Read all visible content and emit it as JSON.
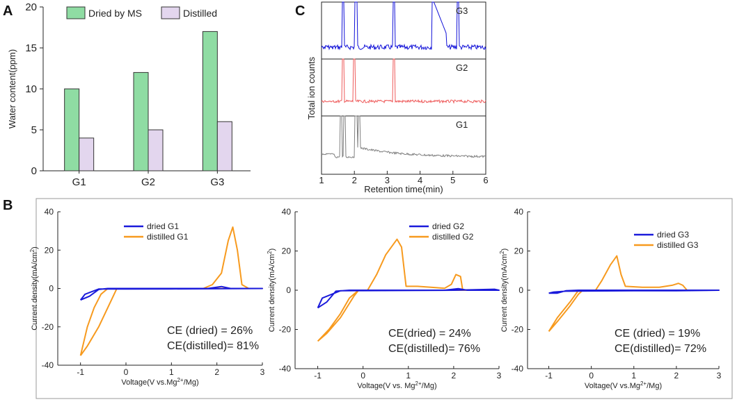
{
  "panel_labels": {
    "a": "A",
    "b": "B",
    "c": "C"
  },
  "colors": {
    "dried": "#1a1adb",
    "distilled": "#f79a1e",
    "bar_dried": "#8fdca3",
    "bar_distilled": "#e3d6ee",
    "g1_trace": "#7f7f7f",
    "g2_trace": "#ee5a5a",
    "g3_trace": "#1010d8"
  },
  "chart_data": [
    {
      "id": "A",
      "type": "bar",
      "title": "",
      "categories": [
        "G1",
        "G2",
        "G3"
      ],
      "series": [
        {
          "name": "Dried by MS",
          "values": [
            10,
            12,
            17
          ]
        },
        {
          "name": "Distilled",
          "values": [
            4,
            5,
            6
          ]
        }
      ],
      "xlabel": "",
      "ylabel": "Water content(ppm)",
      "ylim": [
        0,
        20
      ],
      "yticks": [
        "0",
        "5",
        "10",
        "15",
        "20"
      ],
      "legend": "top"
    },
    {
      "id": "C",
      "type": "line",
      "xlabel": "Retention time(min)",
      "ylabel": "Total ion counts",
      "xlim": [
        1,
        6
      ],
      "xticks": [
        "1",
        "2",
        "3",
        "4",
        "5",
        "6"
      ],
      "series": [
        {
          "name": "G3",
          "peaks": [
            1.65,
            2.05,
            3.2,
            4.4,
            5.15
          ]
        },
        {
          "name": "G2",
          "peaks": [
            1.65,
            2.0,
            3.2
          ]
        },
        {
          "name": "G1",
          "peaks": [
            1.6,
            1.7,
            2.05,
            2.15
          ]
        }
      ]
    },
    {
      "id": "B1",
      "type": "line",
      "xlabel": "Voltage(V vs.Mg2+/Mg)",
      "ylabel": "Current density(mA/cm2)",
      "xlim": [
        -1.5,
        3
      ],
      "ylim": [
        -40,
        40
      ],
      "xticks": [
        "-1",
        "0",
        "1",
        "2",
        "3"
      ],
      "yticks": [
        "-40",
        "-20",
        "0",
        "20",
        "40"
      ],
      "series": [
        {
          "name": "dried G1",
          "points": [
            [
              -1.0,
              -6
            ],
            [
              -0.8,
              -4
            ],
            [
              -0.6,
              -0.5
            ],
            [
              -0.4,
              0
            ],
            [
              0,
              0
            ],
            [
              1,
              0
            ],
            [
              1.8,
              0
            ],
            [
              2.1,
              1
            ],
            [
              2.3,
              0
            ],
            [
              3.0,
              0
            ],
            [
              1,
              -0.2
            ],
            [
              0,
              -0.3
            ],
            [
              -0.6,
              -0.3
            ],
            [
              -0.9,
              -3
            ],
            [
              -1.0,
              -6
            ]
          ]
        },
        {
          "name": "distilled G1",
          "points": [
            [
              -1.0,
              -35
            ],
            [
              -0.85,
              -20
            ],
            [
              -0.7,
              -10
            ],
            [
              -0.55,
              -3
            ],
            [
              -0.4,
              0
            ],
            [
              0,
              0
            ],
            [
              1,
              0
            ],
            [
              1.7,
              0
            ],
            [
              1.9,
              2
            ],
            [
              2.1,
              8
            ],
            [
              2.25,
              25
            ],
            [
              2.35,
              32
            ],
            [
              2.45,
              20
            ],
            [
              2.55,
              2
            ],
            [
              2.7,
              0
            ],
            [
              3.0,
              0
            ],
            [
              2.0,
              0
            ],
            [
              1.0,
              0
            ],
            [
              0.2,
              0
            ],
            [
              -0.2,
              0
            ],
            [
              -0.3,
              -5
            ],
            [
              -0.6,
              -20
            ],
            [
              -0.85,
              -30
            ],
            [
              -1.0,
              -35
            ]
          ]
        }
      ],
      "ce_dried": "CE (dried)  = 26%",
      "ce_distilled": "CE(distilled)= 81%"
    },
    {
      "id": "B2",
      "type": "line",
      "xlabel": "Voltage(V vs. Mg2+/Mg)",
      "ylabel": "Current density(mA/cm2)",
      "xlim": [
        -1.5,
        3
      ],
      "ylim": [
        -40,
        40
      ],
      "xticks": [
        "-1",
        "0",
        "1",
        "2",
        "3"
      ],
      "yticks": [
        "-40",
        "-20",
        "0",
        "20",
        "40"
      ],
      "series": [
        {
          "name": "dried G2",
          "points": [
            [
              -1.0,
              -9
            ],
            [
              -0.8,
              -6
            ],
            [
              -0.6,
              -0.5
            ],
            [
              -0.3,
              0
            ],
            [
              0,
              0
            ],
            [
              1,
              0
            ],
            [
              1.8,
              0
            ],
            [
              2.1,
              0.8
            ],
            [
              2.3,
              0
            ],
            [
              3.0,
              0
            ],
            [
              2.9,
              0.5
            ],
            [
              2.0,
              0
            ],
            [
              0,
              -0.2
            ],
            [
              -0.5,
              -0.3
            ],
            [
              -0.9,
              -4
            ],
            [
              -1.0,
              -9
            ]
          ]
        },
        {
          "name": "distilled G2",
          "points": [
            [
              -1.0,
              -26
            ],
            [
              -0.75,
              -20
            ],
            [
              -0.5,
              -12
            ],
            [
              -0.3,
              -4
            ],
            [
              -0.1,
              0
            ],
            [
              0.1,
              0
            ],
            [
              0.3,
              8
            ],
            [
              0.5,
              18
            ],
            [
              0.75,
              26
            ],
            [
              0.85,
              22
            ],
            [
              0.95,
              2
            ],
            [
              1.2,
              2
            ],
            [
              1.5,
              1.5
            ],
            [
              1.8,
              1
            ],
            [
              1.95,
              3
            ],
            [
              2.05,
              8
            ],
            [
              2.15,
              7
            ],
            [
              2.2,
              0
            ],
            [
              2.5,
              0
            ],
            [
              3.0,
              0
            ],
            [
              1.5,
              0
            ],
            [
              0.5,
              0
            ],
            [
              -0.1,
              0
            ],
            [
              -0.2,
              -3
            ],
            [
              -0.5,
              -14
            ],
            [
              -0.8,
              -22
            ],
            [
              -1.0,
              -26
            ]
          ]
        }
      ],
      "ce_dried": "CE(dried)    = 24%",
      "ce_distilled": "CE(distilled)= 76%"
    },
    {
      "id": "B3",
      "type": "line",
      "xlabel": "Voltage(V vs.Mg2+/Mg)",
      "ylabel": "Current density(mA/cm2)",
      "xlim": [
        -1.5,
        3
      ],
      "ylim": [
        -40,
        40
      ],
      "xticks": [
        "-1",
        "0",
        "1",
        "2",
        "3"
      ],
      "yticks": [
        "-40",
        "-20",
        "0",
        "20",
        "40"
      ],
      "series": [
        {
          "name": "dried G3",
          "points": [
            [
              -1.0,
              -1.5
            ],
            [
              -0.8,
              -1.5
            ],
            [
              -0.6,
              -0.3
            ],
            [
              -0.3,
              0
            ],
            [
              0,
              0
            ],
            [
              1,
              0
            ],
            [
              2,
              0
            ],
            [
              3.0,
              0
            ],
            [
              2,
              -0.3
            ],
            [
              1,
              -0.3
            ],
            [
              0,
              -0.4
            ],
            [
              -0.6,
              -0.5
            ],
            [
              -0.9,
              -1
            ],
            [
              -1.0,
              -1.5
            ]
          ]
        },
        {
          "name": "distilled G3",
          "points": [
            [
              -1.0,
              -21
            ],
            [
              -0.8,
              -14
            ],
            [
              -0.5,
              -6
            ],
            [
              -0.3,
              0
            ],
            [
              0.1,
              0
            ],
            [
              0.25,
              5
            ],
            [
              0.45,
              13
            ],
            [
              0.6,
              17.5
            ],
            [
              0.7,
              8
            ],
            [
              0.8,
              2
            ],
            [
              1.2,
              1.5
            ],
            [
              1.6,
              1.5
            ],
            [
              1.9,
              2.5
            ],
            [
              2.05,
              3.5
            ],
            [
              2.15,
              2.5
            ],
            [
              2.25,
              0
            ],
            [
              2.6,
              0
            ],
            [
              3.0,
              0
            ],
            [
              1.5,
              0
            ],
            [
              0.5,
              0
            ],
            [
              -0.2,
              0
            ],
            [
              -0.3,
              -2
            ],
            [
              -0.5,
              -8
            ],
            [
              -0.8,
              -16
            ],
            [
              -1.0,
              -21
            ]
          ]
        }
      ],
      "ce_dried": "CE  (dried)  = 19%",
      "ce_distilled": "CE(distilled)= 72%"
    }
  ]
}
